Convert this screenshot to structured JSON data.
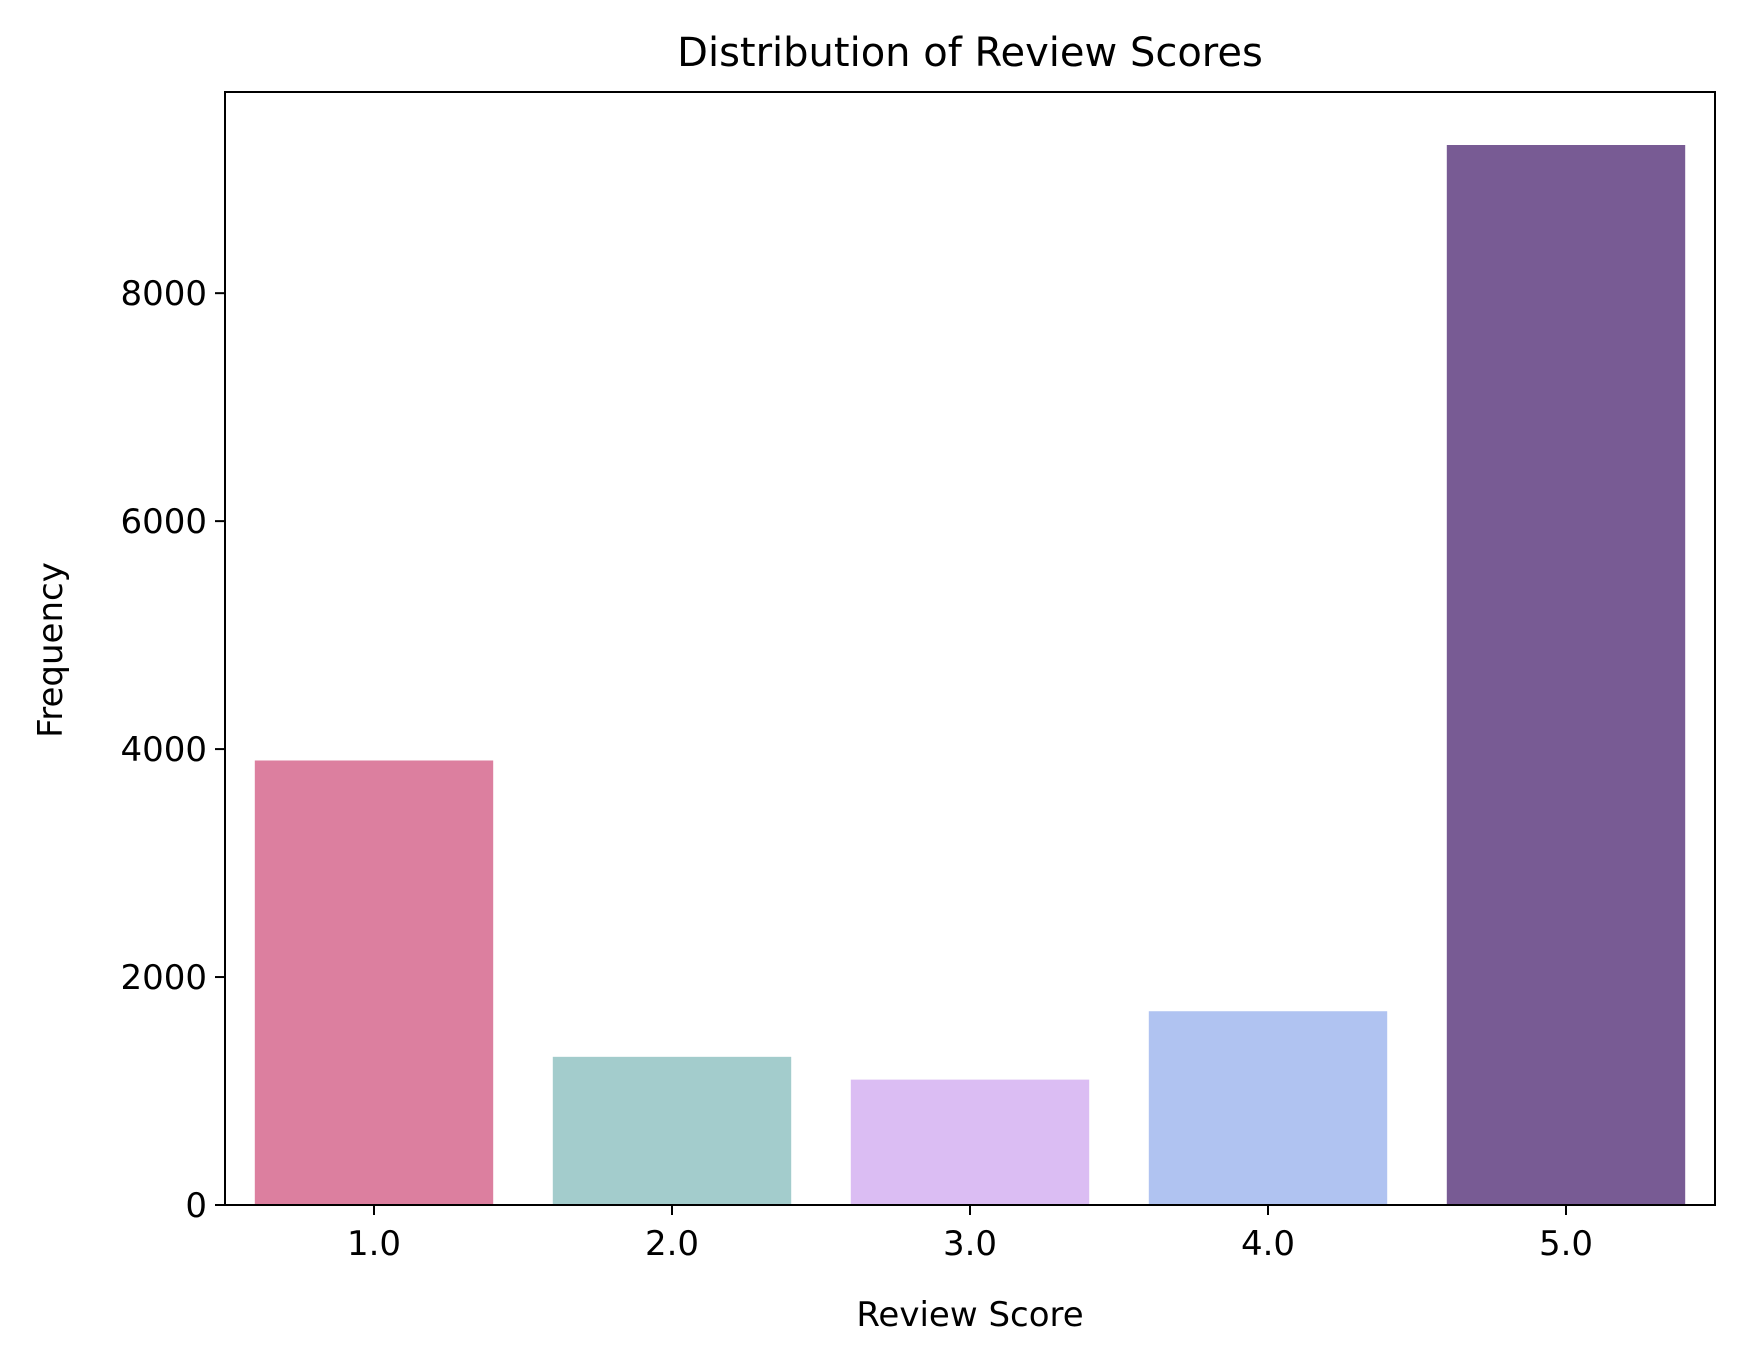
{
  "chart_data": {
    "type": "bar",
    "title": "Distribution of Review Scores",
    "xlabel": "Review Score",
    "ylabel": "Frequency",
    "categories": [
      "1.0",
      "2.0",
      "3.0",
      "4.0",
      "5.0"
    ],
    "values": [
      3900,
      1300,
      1100,
      1700,
      9300
    ],
    "colors": [
      "#dc7f9f",
      "#a3cccc",
      "#dbbdf3",
      "#b0c3f1",
      "#785b94"
    ],
    "ylim": [
      0,
      9765
    ],
    "yticks": [
      0,
      2000,
      4000,
      6000,
      8000
    ],
    "grid": false,
    "legend": "none"
  }
}
